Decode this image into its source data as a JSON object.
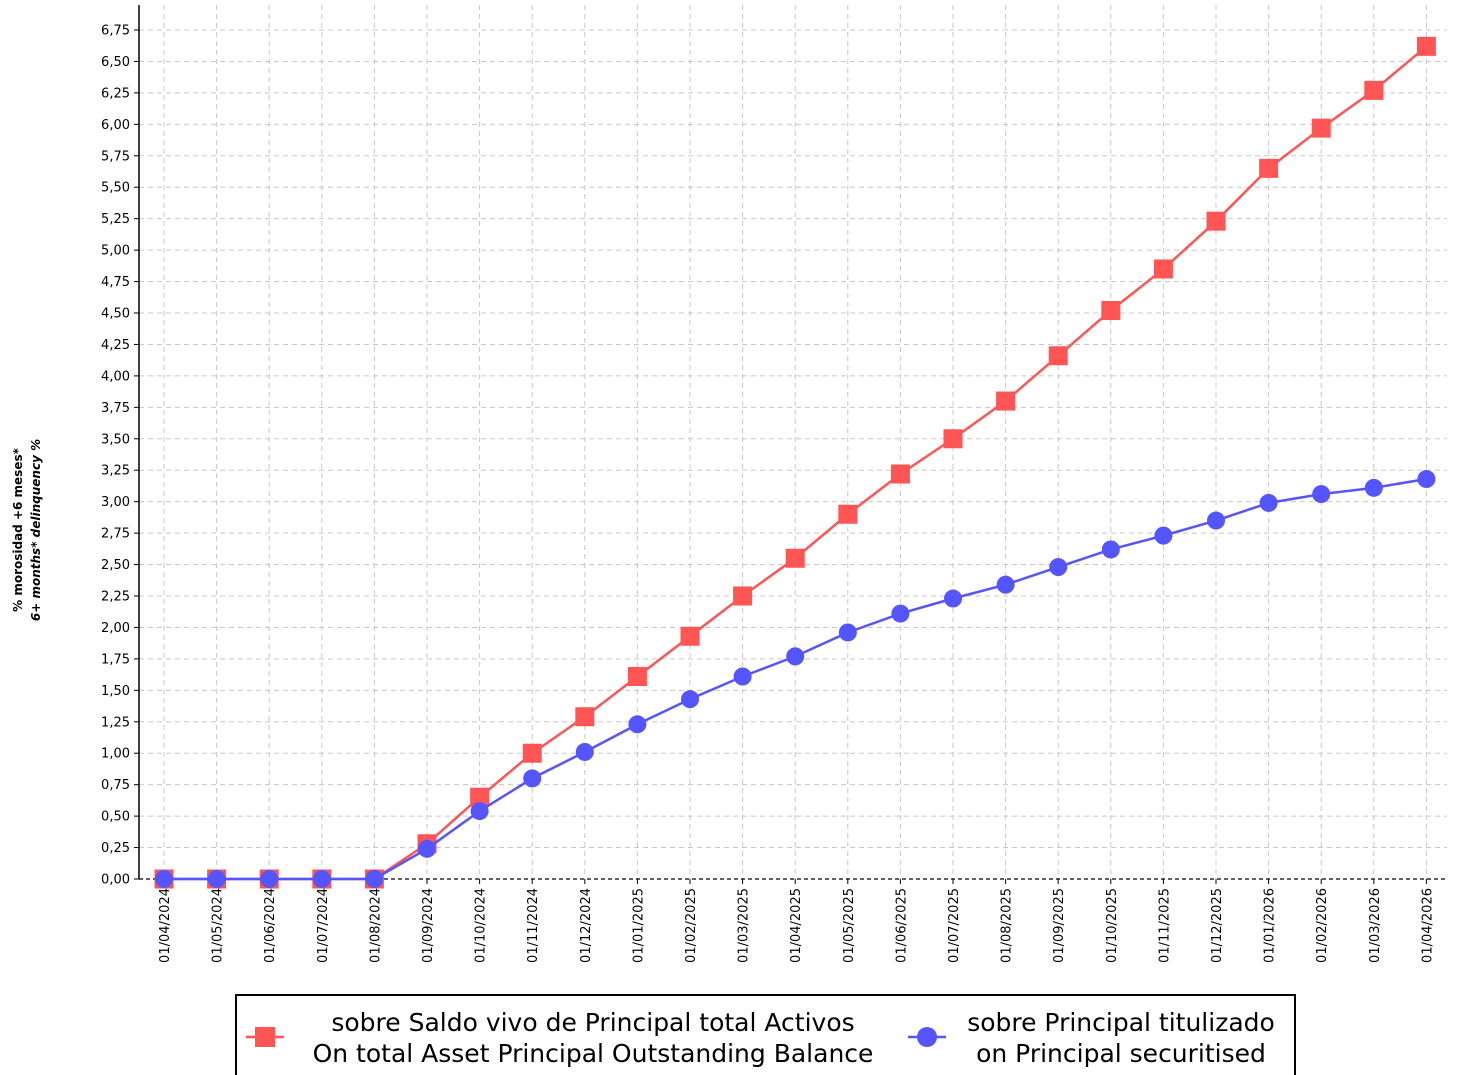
{
  "chart_data": {
    "type": "line",
    "title": "",
    "ylabel": "% morosidad +6 meses*",
    "ylabel_en": "6+ months* delinquency %",
    "xlabel": "",
    "ylim": [
      0,
      6.75
    ],
    "yticks": [
      "0,00",
      "0,25",
      "0,50",
      "0,75",
      "1,00",
      "1,25",
      "1,50",
      "1,75",
      "2,00",
      "2,25",
      "2,50",
      "2,75",
      "3,00",
      "3,25",
      "3,50",
      "3,75",
      "4,00",
      "4,25",
      "4,50",
      "4,75",
      "5,00",
      "5,25",
      "5,50",
      "5,75",
      "6,00",
      "6,25",
      "6,50",
      "6,75"
    ],
    "grid": true,
    "legend_position": "bottom",
    "categories": [
      "01/04/2024",
      "01/05/2024",
      "01/06/2024",
      "01/07/2024",
      "01/08/2024",
      "01/09/2024",
      "01/10/2024",
      "01/11/2024",
      "01/12/2024",
      "01/01/2025",
      "01/02/2025",
      "01/03/2025",
      "01/04/2025",
      "01/05/2025",
      "01/06/2025",
      "01/07/2025",
      "01/08/2025",
      "01/09/2025",
      "01/10/2025",
      "01/11/2025",
      "01/12/2025",
      "01/01/2026",
      "01/02/2026",
      "01/03/2026",
      "01/04/2026"
    ],
    "series": [
      {
        "name": "sobre Saldo vivo de Principal total Activos",
        "name_en": "On total Asset Principal Outstanding Balance",
        "color": "#ff5555",
        "marker": "square",
        "values": [
          0,
          0,
          0,
          0,
          0,
          0.28,
          0.65,
          1.0,
          1.29,
          1.61,
          1.93,
          2.25,
          2.55,
          2.9,
          3.22,
          3.5,
          3.8,
          4.16,
          4.52,
          4.85,
          5.23,
          5.65,
          5.97,
          6.27,
          6.62
        ]
      },
      {
        "name": "sobre Principal titulizado",
        "name_en": "on Principal securitised",
        "color": "#5555ff",
        "marker": "circle",
        "values": [
          0,
          0,
          0,
          0,
          0,
          0.24,
          0.54,
          0.8,
          1.01,
          1.23,
          1.43,
          1.61,
          1.77,
          1.96,
          2.11,
          2.23,
          2.34,
          2.48,
          2.62,
          2.73,
          2.85,
          2.99,
          3.06,
          3.11,
          3.18
        ]
      }
    ]
  }
}
